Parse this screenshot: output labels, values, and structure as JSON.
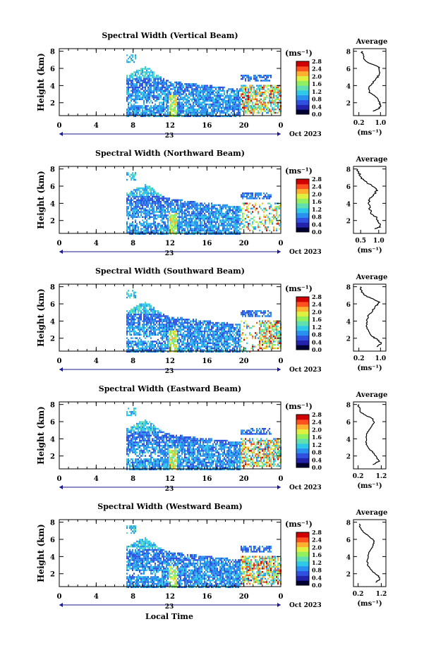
{
  "chart_data": {
    "type": "heatmap",
    "date_label": "Oct 2023",
    "date_day": "23",
    "x_ticks": [
      "0",
      "4",
      "8",
      "12",
      "16",
      "20",
      "0"
    ],
    "xlim": [
      0,
      24
    ],
    "xlabel_bottom": "Local Time",
    "ylabel": "Height (km)",
    "y_ticks": [
      "2",
      "4",
      "6",
      "8"
    ],
    "ylim": [
      0.5,
      8.3
    ],
    "colorbar": {
      "unit": "(ms⁻¹)",
      "ticks": [
        "0.0",
        "0.4",
        "0.8",
        "1.2",
        "1.6",
        "2.0",
        "2.4",
        "2.8"
      ],
      "range": [
        0.0,
        2.8
      ],
      "colors": [
        "#000033",
        "#2222aa",
        "#3050e0",
        "#2a90f0",
        "#30c8e8",
        "#60e0b0",
        "#90f060",
        "#e0f040",
        "#ffb030",
        "#ff5020",
        "#d00000"
      ]
    },
    "panels": [
      {
        "title": "Spectral Width (Vertical Beam)",
        "profile": {
          "title": "Average",
          "xlabel": "(ms⁻¹)",
          "xticks": [
            "0.2",
            "1.0"
          ],
          "xlim": [
            0.0,
            1.2
          ],
          "yticks": [
            "2",
            "4",
            "6",
            "8"
          ],
          "ylim": [
            0.5,
            8.3
          ],
          "points": [
            [
              0.72,
              1.0
            ],
            [
              0.95,
              1.3
            ],
            [
              1.0,
              1.7
            ],
            [
              0.97,
              2.1
            ],
            [
              0.85,
              2.6
            ],
            [
              0.6,
              3.2
            ],
            [
              0.55,
              3.7
            ],
            [
              0.68,
              4.2
            ],
            [
              0.85,
              4.8
            ],
            [
              0.95,
              5.3
            ],
            [
              0.98,
              5.8
            ],
            [
              0.92,
              6.2
            ],
            [
              0.6,
              6.6
            ],
            [
              0.4,
              7.0
            ],
            [
              0.35,
              7.6
            ],
            [
              0.3,
              8.0
            ]
          ]
        }
      },
      {
        "title": "Spectral Width (Northward Beam)",
        "profile": {
          "title": "Average",
          "xlabel": "(ms⁻¹)",
          "xticks": [
            "0.5",
            "1.0"
          ],
          "xlim": [
            0.3,
            1.2
          ],
          "yticks": [
            "2",
            "4",
            "6",
            "8"
          ],
          "ylim": [
            0.5,
            8.3
          ],
          "points": [
            [
              0.9,
              1.0
            ],
            [
              1.05,
              1.3
            ],
            [
              1.0,
              1.8
            ],
            [
              0.95,
              2.3
            ],
            [
              0.8,
              2.8
            ],
            [
              0.75,
              3.4
            ],
            [
              0.72,
              4.0
            ],
            [
              0.75,
              4.6
            ],
            [
              0.9,
              5.1
            ],
            [
              0.95,
              5.6
            ],
            [
              0.8,
              6.1
            ],
            [
              0.6,
              6.6
            ],
            [
              0.5,
              7.1
            ],
            [
              0.45,
              7.6
            ],
            [
              0.4,
              8.0
            ]
          ]
        }
      },
      {
        "title": "Spectral Width (Southward Beam)",
        "profile": {
          "title": "Average",
          "xlabel": "(ms⁻¹)",
          "xticks": [
            "0.2",
            "1.0"
          ],
          "xlim": [
            0.0,
            1.2
          ],
          "yticks": [
            "2",
            "4",
            "6",
            "8"
          ],
          "ylim": [
            0.5,
            8.3
          ],
          "points": [
            [
              0.85,
              1.0
            ],
            [
              1.05,
              1.4
            ],
            [
              0.9,
              1.8
            ],
            [
              0.7,
              2.2
            ],
            [
              0.55,
              2.8
            ],
            [
              0.5,
              3.4
            ],
            [
              0.5,
              4.0
            ],
            [
              0.55,
              4.6
            ],
            [
              0.7,
              5.2
            ],
            [
              0.85,
              5.8
            ],
            [
              0.95,
              6.2
            ],
            [
              0.7,
              6.6
            ],
            [
              0.4,
              7.0
            ],
            [
              0.3,
              7.5
            ],
            [
              0.25,
              8.0
            ]
          ]
        }
      },
      {
        "title": "Spectral Width (Eastward Beam)",
        "profile": {
          "title": "Average",
          "xlabel": "(ms⁻¹)",
          "xticks": [
            "0.2",
            "1.2"
          ],
          "xlim": [
            0.0,
            1.4
          ],
          "yticks": [
            "2",
            "4",
            "6",
            "8"
          ],
          "ylim": [
            0.5,
            8.3
          ],
          "points": [
            [
              0.85,
              1.0
            ],
            [
              1.1,
              1.4
            ],
            [
              1.0,
              1.9
            ],
            [
              0.85,
              2.4
            ],
            [
              0.65,
              2.9
            ],
            [
              0.55,
              3.5
            ],
            [
              0.55,
              4.1
            ],
            [
              0.6,
              4.7
            ],
            [
              0.75,
              5.3
            ],
            [
              0.9,
              5.9
            ],
            [
              0.85,
              6.3
            ],
            [
              0.55,
              6.7
            ],
            [
              0.3,
              7.1
            ],
            [
              0.25,
              7.6
            ],
            [
              0.2,
              8.0
            ]
          ]
        }
      },
      {
        "title": "Spectral Width (Westward Beam)",
        "profile": {
          "title": "Average",
          "xlabel": "(ms⁻¹)",
          "xticks": [
            "0.2",
            "1.2"
          ],
          "xlim": [
            0.0,
            1.4
          ],
          "yticks": [
            "2",
            "4",
            "6",
            "8"
          ],
          "ylim": [
            0.5,
            8.3
          ],
          "points": [
            [
              0.95,
              1.0
            ],
            [
              1.15,
              1.4
            ],
            [
              1.05,
              1.8
            ],
            [
              0.8,
              2.3
            ],
            [
              0.65,
              2.8
            ],
            [
              0.6,
              3.4
            ],
            [
              0.62,
              4.0
            ],
            [
              0.7,
              4.6
            ],
            [
              0.85,
              5.2
            ],
            [
              0.9,
              5.8
            ],
            [
              0.7,
              6.3
            ],
            [
              0.45,
              6.8
            ],
            [
              0.3,
              7.3
            ],
            [
              0.25,
              7.8
            ]
          ]
        }
      }
    ]
  }
}
